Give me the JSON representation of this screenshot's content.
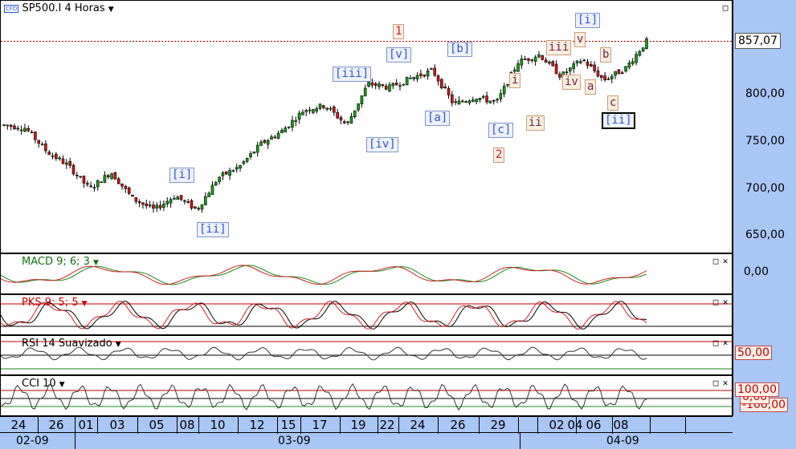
{
  "main": {
    "symbol_label": "SP500.I 4 Horas",
    "symbol_badge": "CFD",
    "last_price": "857,07",
    "y_labels": [
      "800,00",
      "750,00",
      "700,00",
      "650,00"
    ],
    "waves": [
      {
        "text": "1",
        "style": "red"
      },
      {
        "text": "[v]",
        "style": "blue"
      },
      {
        "text": "[b]",
        "style": "blue"
      },
      {
        "text": "[iii]",
        "style": "blue"
      },
      {
        "text": "[iv]",
        "style": "blue"
      },
      {
        "text": "[a]",
        "style": "blue"
      },
      {
        "text": "[c]",
        "style": "blue"
      },
      {
        "text": "2",
        "style": "red"
      },
      {
        "text": "[i]",
        "style": "blue"
      },
      {
        "text": "[ii]",
        "style": "blue"
      },
      {
        "text": "i",
        "style": "dark"
      },
      {
        "text": "ii",
        "style": "dark"
      },
      {
        "text": "iii",
        "style": "dark"
      },
      {
        "text": "iv",
        "style": "dark"
      },
      {
        "text": "v",
        "style": "dark"
      },
      {
        "text": "[i]",
        "style": "blue"
      },
      {
        "text": "a",
        "style": "dark"
      },
      {
        "text": "b",
        "style": "dark"
      },
      {
        "text": "c",
        "style": "dark"
      },
      {
        "text": "[ii]",
        "style": "blue"
      }
    ]
  },
  "macd": {
    "title": "MACD 9; 6; 3",
    "axis_label": "0,00"
  },
  "pks": {
    "title": "PKS 9; 5; 5"
  },
  "rsi": {
    "title": "RSI 14 Suavizado",
    "level_label": "50,00"
  },
  "cci": {
    "title": "CCI 10",
    "level_label_top": "100,00",
    "level_label_mid": "0,00",
    "level_label_bottom": "-100,00"
  },
  "xaxis": {
    "days": [
      "24",
      "26",
      "01",
      "03",
      "05",
      "08",
      "10",
      "12",
      "15",
      "17",
      "19",
      "22",
      "24",
      "26",
      "29",
      "02",
      "04",
      "06",
      "08"
    ],
    "months": [
      "02-09",
      "03-09",
      "04-09"
    ]
  },
  "chart_data": {
    "type": "candlestick",
    "title": "SP500.I 4 Horas",
    "ylim": [
      620,
      900
    ],
    "y_ticks": [
      650,
      700,
      750,
      800
    ],
    "last_value": 857.07,
    "x_tick_labels": [
      "24",
      "26",
      "01",
      "03",
      "05",
      "08",
      "10",
      "12",
      "15",
      "17",
      "19",
      "22",
      "24",
      "26",
      "29",
      "02",
      "04",
      "06",
      "08"
    ],
    "x_period_labels": [
      "02-09",
      "03-09",
      "04-09"
    ],
    "approx_close_path": [
      {
        "x": "24",
        "y": 768
      },
      {
        "x": "26",
        "y": 765
      },
      {
        "x": "26",
        "y": 740
      },
      {
        "x": "01",
        "y": 725
      },
      {
        "x": "03",
        "y": 700
      },
      {
        "x": "03",
        "y": 718
      },
      {
        "x": "05",
        "y": 690
      },
      {
        "x": "08",
        "y": 678
      },
      {
        "x": "08",
        "y": 693
      },
      {
        "x": "08",
        "y": 678
      },
      {
        "x": "10",
        "y": 712
      },
      {
        "x": "12",
        "y": 724
      },
      {
        "x": "15",
        "y": 748
      },
      {
        "x": "17",
        "y": 762
      },
      {
        "x": "17",
        "y": 784
      },
      {
        "x": "19",
        "y": 789
      },
      {
        "x": "19",
        "y": 768
      },
      {
        "x": "22",
        "y": 812
      },
      {
        "x": "24",
        "y": 808
      },
      {
        "x": "24",
        "y": 818
      },
      {
        "x": "26",
        "y": 826
      },
      {
        "x": "29",
        "y": 790
      },
      {
        "x": "29",
        "y": 798
      },
      {
        "x": "02",
        "y": 792
      },
      {
        "x": "02",
        "y": 835
      },
      {
        "x": "04",
        "y": 843
      },
      {
        "x": "06",
        "y": 820
      },
      {
        "x": "06",
        "y": 838
      },
      {
        "x": "06",
        "y": 816
      },
      {
        "x": "08",
        "y": 828
      },
      {
        "x": "08",
        "y": 857.07
      }
    ]
  }
}
